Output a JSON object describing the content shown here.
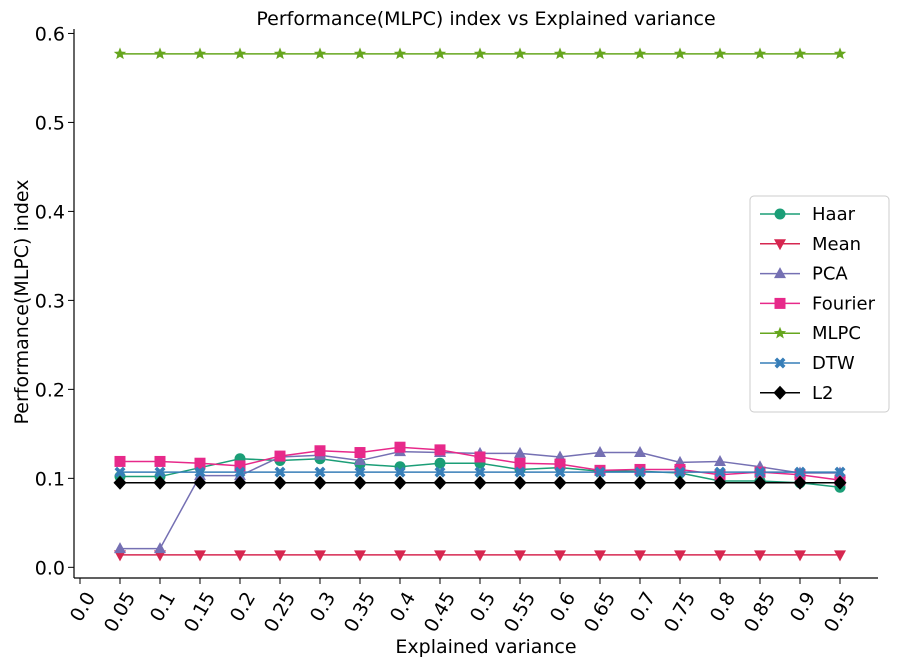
{
  "chart_data": {
    "type": "line",
    "title": "Performance(MLPC) index vs Explained variance",
    "xlabel": "Explained variance",
    "ylabel": "Performance(MLPC) index",
    "ylim": [
      -0.012,
      0.605
    ],
    "y_ticks": [
      "0.0",
      "0.1",
      "0.2",
      "0.3",
      "0.4",
      "0.5",
      "0.6"
    ],
    "x_ticks": [
      "0.0",
      "0.05",
      "0.1",
      "0.15",
      "0.2",
      "0.25",
      "0.3",
      "0.35",
      "0.4",
      "0.45",
      "0.5",
      "0.55",
      "0.6",
      "0.65",
      "0.7",
      "0.75",
      "0.8",
      "0.85",
      "0.9",
      "0.95"
    ],
    "x": [
      0.05,
      0.1,
      0.15,
      0.2,
      0.25,
      0.3,
      0.35,
      0.4,
      0.45,
      0.5,
      0.55,
      0.6,
      0.65,
      0.7,
      0.75,
      0.8,
      0.85,
      0.9,
      0.95
    ],
    "grid": false,
    "legend_position": "center-right",
    "series": [
      {
        "name": "Haar",
        "color": "#1b9e77",
        "marker": "circle",
        "values": [
          0.102,
          0.102,
          0.112,
          0.122,
          0.12,
          0.122,
          0.116,
          0.113,
          0.117,
          0.117,
          0.11,
          0.112,
          0.108,
          0.108,
          0.106,
          0.097,
          0.097,
          0.095,
          0.09
        ]
      },
      {
        "name": "Mean",
        "color": "#d62750",
        "marker": "triangle-down",
        "values": [
          0.014,
          0.014,
          0.014,
          0.014,
          0.014,
          0.014,
          0.014,
          0.014,
          0.014,
          0.014,
          0.014,
          0.014,
          0.014,
          0.014,
          0.014,
          0.014,
          0.014,
          0.014,
          0.014
        ]
      },
      {
        "name": "PCA",
        "color": "#7570b3",
        "marker": "triangle-up",
        "values": [
          0.021,
          0.021,
          0.103,
          0.103,
          0.124,
          0.126,
          0.12,
          0.13,
          0.129,
          0.128,
          0.128,
          0.124,
          0.129,
          0.129,
          0.118,
          0.119,
          0.113,
          0.106,
          0.106
        ]
      },
      {
        "name": "Fourier",
        "color": "#e7298a",
        "marker": "square",
        "values": [
          0.119,
          0.119,
          0.117,
          0.114,
          0.125,
          0.131,
          0.129,
          0.135,
          0.132,
          0.124,
          0.117,
          0.116,
          0.109,
          0.11,
          0.11,
          0.104,
          0.107,
          0.104,
          0.098
        ]
      },
      {
        "name": "MLPC",
        "color": "#66a61e",
        "marker": "star",
        "values": [
          0.577,
          0.577,
          0.577,
          0.577,
          0.577,
          0.577,
          0.577,
          0.577,
          0.577,
          0.577,
          0.577,
          0.577,
          0.577,
          0.577,
          0.577,
          0.577,
          0.577,
          0.577,
          0.577
        ]
      },
      {
        "name": "DTW",
        "color": "#377eb8",
        "marker": "x",
        "values": [
          0.107,
          0.107,
          0.107,
          0.107,
          0.107,
          0.107,
          0.107,
          0.107,
          0.107,
          0.107,
          0.107,
          0.107,
          0.107,
          0.107,
          0.107,
          0.107,
          0.107,
          0.107,
          0.107
        ]
      },
      {
        "name": "L2",
        "color": "#000000",
        "marker": "diamond",
        "values": [
          0.095,
          0.095,
          0.095,
          0.095,
          0.095,
          0.095,
          0.095,
          0.095,
          0.095,
          0.095,
          0.095,
          0.095,
          0.095,
          0.095,
          0.095,
          0.095,
          0.095,
          0.095,
          0.095
        ]
      }
    ]
  }
}
